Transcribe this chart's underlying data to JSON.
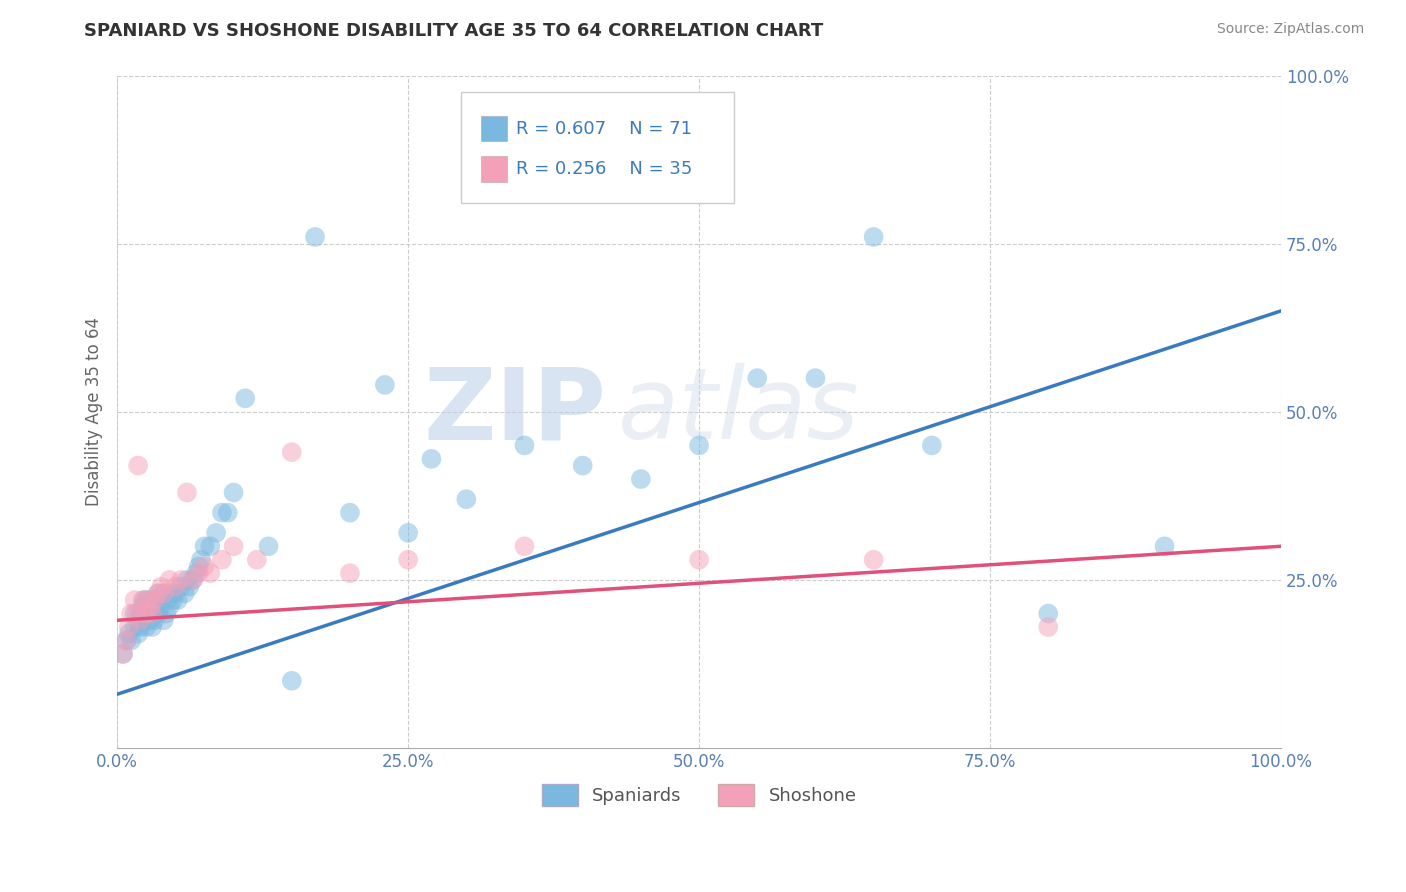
{
  "title": "SPANIARD VS SHOSHONE DISABILITY AGE 35 TO 64 CORRELATION CHART",
  "source": "Source: ZipAtlas.com",
  "ylabel": "Disability Age 35 to 64",
  "spaniard_R": 0.607,
  "spaniard_N": 71,
  "shoshone_R": 0.256,
  "shoshone_N": 35,
  "spaniard_color": "#7ab8e0",
  "shoshone_color": "#f4a0b8",
  "spaniard_line_color": "#3a7abf",
  "shoshone_line_color": "#e0507a",
  "legend_label_spaniard": "Spaniards",
  "legend_label_shoshone": "Shoshone",
  "xlim": [
    0.0,
    1.0
  ],
  "ylim": [
    0.0,
    1.0
  ],
  "x_ticks": [
    0.0,
    0.25,
    0.5,
    0.75,
    1.0
  ],
  "x_tick_labels": [
    "0.0%",
    "25.0%",
    "50.0%",
    "75.0%",
    "100.0%"
  ],
  "y_ticks": [
    0.25,
    0.5,
    0.75,
    1.0
  ],
  "y_tick_labels": [
    "25.0%",
    "50.0%",
    "75.0%",
    "100.0%"
  ],
  "background_color": "#ffffff",
  "grid_color": "#cccccc",
  "watermark_zip": "ZIP",
  "watermark_atlas": "atlas",
  "spaniard_x": [
    0.005,
    0.008,
    0.01,
    0.012,
    0.015,
    0.015,
    0.018,
    0.018,
    0.02,
    0.02,
    0.022,
    0.022,
    0.023,
    0.023,
    0.025,
    0.025,
    0.025,
    0.027,
    0.028,
    0.028,
    0.03,
    0.03,
    0.03,
    0.032,
    0.033,
    0.035,
    0.035,
    0.037,
    0.038,
    0.04,
    0.04,
    0.042,
    0.043,
    0.045,
    0.047,
    0.048,
    0.05,
    0.052,
    0.055,
    0.058,
    0.06,
    0.062,
    0.065,
    0.068,
    0.07,
    0.072,
    0.075,
    0.08,
    0.085,
    0.09,
    0.095,
    0.1,
    0.11,
    0.13,
    0.15,
    0.17,
    0.2,
    0.23,
    0.25,
    0.27,
    0.3,
    0.35,
    0.4,
    0.45,
    0.5,
    0.55,
    0.6,
    0.65,
    0.7,
    0.8,
    0.9
  ],
  "spaniard_y": [
    0.14,
    0.16,
    0.17,
    0.16,
    0.18,
    0.2,
    0.17,
    0.19,
    0.18,
    0.2,
    0.19,
    0.21,
    0.2,
    0.22,
    0.18,
    0.2,
    0.22,
    0.2,
    0.19,
    0.21,
    0.18,
    0.2,
    0.22,
    0.19,
    0.21,
    0.2,
    0.23,
    0.21,
    0.22,
    0.19,
    0.23,
    0.2,
    0.22,
    0.21,
    0.23,
    0.22,
    0.23,
    0.22,
    0.24,
    0.23,
    0.25,
    0.24,
    0.25,
    0.26,
    0.27,
    0.28,
    0.3,
    0.3,
    0.32,
    0.35,
    0.35,
    0.38,
    0.52,
    0.3,
    0.1,
    0.76,
    0.35,
    0.54,
    0.32,
    0.43,
    0.37,
    0.45,
    0.42,
    0.4,
    0.45,
    0.55,
    0.55,
    0.76,
    0.45,
    0.2,
    0.3
  ],
  "shoshone_x": [
    0.005,
    0.008,
    0.01,
    0.012,
    0.015,
    0.017,
    0.018,
    0.02,
    0.022,
    0.025,
    0.027,
    0.028,
    0.03,
    0.032,
    0.035,
    0.038,
    0.04,
    0.045,
    0.05,
    0.055,
    0.06,
    0.065,
    0.07,
    0.075,
    0.08,
    0.09,
    0.1,
    0.12,
    0.15,
    0.2,
    0.25,
    0.35,
    0.5,
    0.65,
    0.8
  ],
  "shoshone_y": [
    0.14,
    0.16,
    0.18,
    0.2,
    0.22,
    0.2,
    0.42,
    0.19,
    0.22,
    0.2,
    0.22,
    0.21,
    0.2,
    0.22,
    0.23,
    0.24,
    0.23,
    0.25,
    0.24,
    0.25,
    0.38,
    0.25,
    0.26,
    0.27,
    0.26,
    0.28,
    0.3,
    0.28,
    0.44,
    0.26,
    0.28,
    0.3,
    0.28,
    0.28,
    0.18
  ],
  "spaniard_line_x0": 0.0,
  "spaniard_line_y0": 0.08,
  "spaniard_line_x1": 1.0,
  "spaniard_line_y1": 0.65,
  "shoshone_line_x0": 0.0,
  "shoshone_line_y0": 0.19,
  "shoshone_line_x1": 1.0,
  "shoshone_line_y1": 0.3
}
